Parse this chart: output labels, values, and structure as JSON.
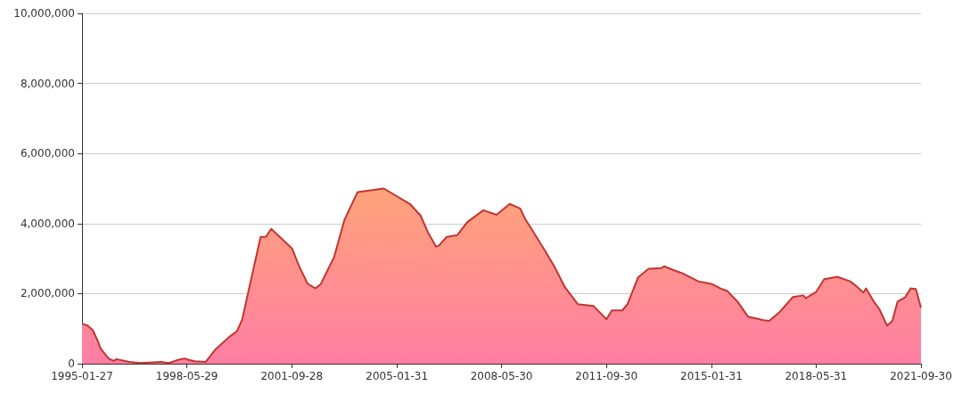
{
  "chart_data": {
    "type": "area",
    "x": [
      "1995-01-27",
      "1995-04",
      "1995-06",
      "1995-08",
      "1995-09",
      "1995-12",
      "1996-02",
      "1996-03",
      "1996-08",
      "1996-12",
      "1997-08",
      "1997-11",
      "1998-02",
      "1998-05",
      "1998-07",
      "1998-09",
      "1999-01",
      "1999-05",
      "1999-10",
      "2000-01",
      "2000-03",
      "2000-06",
      "2000-10",
      "2000-12",
      "2001-02",
      "2001-10",
      "2001-12",
      "2002-01",
      "2002-04",
      "2002-07",
      "2002-09",
      "2003-02",
      "2003-06",
      "2003-11",
      "2004-09",
      "2005-07",
      "2005-11",
      "2006-02",
      "2006-05",
      "2006-06",
      "2006-09",
      "2007-01",
      "2007-05",
      "2007-11",
      "2008-04",
      "2008-09",
      "2009-01",
      "2009-03",
      "2009-10",
      "2010-02",
      "2010-06",
      "2010-11",
      "2011-05",
      "2011-10",
      "2011-12",
      "2012-04",
      "2012-06",
      "2012-10",
      "2013-02",
      "2013-07",
      "2013-08",
      "2013-12",
      "2014-03",
      "2014-09",
      "2015-02",
      "2015-06",
      "2015-08",
      "2015-12",
      "2016-04",
      "2016-10",
      "2016-12",
      "2017-04",
      "2017-09",
      "2018-01",
      "2018-02",
      "2018-06",
      "2018-09",
      "2019-02",
      "2019-07",
      "2019-09",
      "2019-12",
      "2020-01",
      "2020-04",
      "2020-06",
      "2020-09",
      "2020-11",
      "2021-01",
      "2021-04",
      "2021-06",
      "2021-08",
      "2021-09-30"
    ],
    "series": [
      {
        "color": "#c23531",
        "values": [
          1140000,
          1090000,
          960000,
          630000,
          430000,
          150000,
          80000,
          130000,
          50000,
          20000,
          50000,
          20000,
          100000,
          150000,
          100000,
          70000,
          50000,
          420000,
          760000,
          930000,
          1260000,
          2280000,
          3620000,
          3620000,
          3850000,
          3290000,
          2910000,
          2730000,
          2280000,
          2150000,
          2280000,
          3040000,
          4100000,
          4900000,
          5000000,
          4560000,
          4230000,
          3720000,
          3340000,
          3370000,
          3620000,
          3670000,
          4050000,
          4380000,
          4250000,
          4560000,
          4430000,
          4130000,
          3290000,
          2780000,
          2200000,
          1700000,
          1650000,
          1270000,
          1520000,
          1520000,
          1700000,
          2460000,
          2710000,
          2730000,
          2780000,
          2660000,
          2580000,
          2350000,
          2280000,
          2130000,
          2080000,
          1770000,
          1340000,
          1240000,
          1220000,
          1470000,
          1900000,
          1950000,
          1870000,
          2050000,
          2410000,
          2480000,
          2350000,
          2230000,
          2030000,
          2150000,
          1770000,
          1570000,
          1090000,
          1220000,
          1770000,
          1900000,
          2150000,
          2130000,
          1600000
        ]
      }
    ],
    "xlim": [
      "1995-01-27",
      "2021-09-30"
    ],
    "xticks": [
      "1995-01-27",
      "1998-05-29",
      "2001-09-28",
      "2005-01-31",
      "2008-05-30",
      "2011-09-30",
      "2015-01-31",
      "2018-05-31",
      "2021-09-30"
    ],
    "ylim": [
      0,
      10000000
    ],
    "yticks": [
      {
        "value": 0,
        "label": "0"
      },
      {
        "value": 2000000,
        "label": "2,000,000"
      },
      {
        "value": 4000000,
        "label": "4,000,000"
      },
      {
        "value": 6000000,
        "label": "6,000,000"
      },
      {
        "value": 8000000,
        "label": "8,000,000"
      },
      {
        "value": 10000000,
        "label": "10,000,000"
      }
    ],
    "grid": "y",
    "marker": "none",
    "line_style": "solid"
  }
}
